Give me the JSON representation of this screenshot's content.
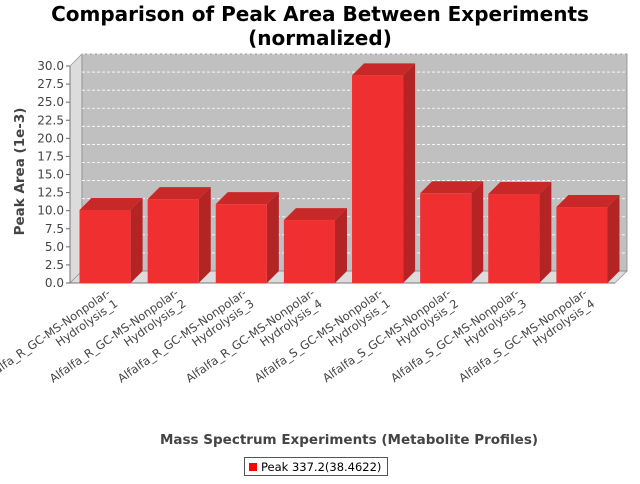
{
  "chart_data": {
    "type": "bar",
    "title_lines": [
      "Comparison of Peak Area Between Experiments",
      "(normalized)"
    ],
    "xlabel": "Mass Spectrum Experiments (Metabolite Profiles)",
    "ylabel": "Peak Area (1e-3)",
    "ylim": [
      0,
      30
    ],
    "ytick_step": 2.5,
    "yticks": [
      "0.0",
      "2.5",
      "5.0",
      "7.5",
      "10.0",
      "12.5",
      "15.0",
      "17.5",
      "20.0",
      "22.5",
      "25.0",
      "27.5",
      "30.0"
    ],
    "grid": true,
    "categories": [
      [
        "Alfalfa_R_GC-MS-Nonpolar-",
        "Hydrolysis_1"
      ],
      [
        "Alfalfa_R_GC-MS-Nonpolar-",
        "Hydrolysis_2"
      ],
      [
        "Alfalfa_R_GC-MS-Nonpolar-",
        "Hydrolysis_3"
      ],
      [
        "Alfalfa_R_GC-MS-Nonpolar-",
        "Hydrolysis_4"
      ],
      [
        "Alfalfa_S_GC-MS-Nonpolar-",
        "Hydrolysis_1"
      ],
      [
        "Alfalfa_S_GC-MS-Nonpolar-",
        "Hydrolysis_2"
      ],
      [
        "Alfalfa_S_GC-MS-Nonpolar-",
        "Hydrolysis_3"
      ],
      [
        "Alfalfa_S_GC-MS-Nonpolar-",
        "Hydrolysis_4"
      ]
    ],
    "series": [
      {
        "name": "Peak 337.2(38.4622)",
        "color": "#ff0000",
        "values": [
          10.1,
          11.6,
          10.9,
          8.7,
          28.7,
          12.4,
          12.3,
          10.5
        ]
      }
    ],
    "legend_position": "bottom-center",
    "colors": {
      "plot_background": "#c0c0c0",
      "plot_wall": "#dcdcdc",
      "bar_front": "#f03030",
      "bar_side": "#b42424",
      "bar_top": "#c82828"
    }
  }
}
